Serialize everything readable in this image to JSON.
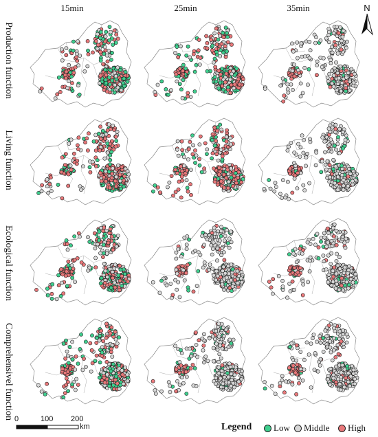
{
  "columns": [
    "15min",
    "25min",
    "35min"
  ],
  "rows": [
    "Production function",
    "Living function",
    "Ecological function",
    "Comprehensivel function"
  ],
  "north_label": "N",
  "scale_bar": {
    "ticks": [
      "0",
      "100",
      "200"
    ],
    "unit": "km"
  },
  "legend": {
    "title": "Legend",
    "items": [
      {
        "label": "Low",
        "color": "#3fce8e"
      },
      {
        "label": "Middle",
        "color": "#d6d6d6"
      },
      {
        "label": "High",
        "color": "#e8787a"
      }
    ]
  },
  "dominant_class": [
    [
      "mixed",
      "mixed",
      "middle"
    ],
    [
      "high",
      "high",
      "middle"
    ],
    [
      "mixed",
      "middle",
      "middle"
    ],
    [
      "mixed",
      "middle",
      "middle"
    ]
  ]
}
